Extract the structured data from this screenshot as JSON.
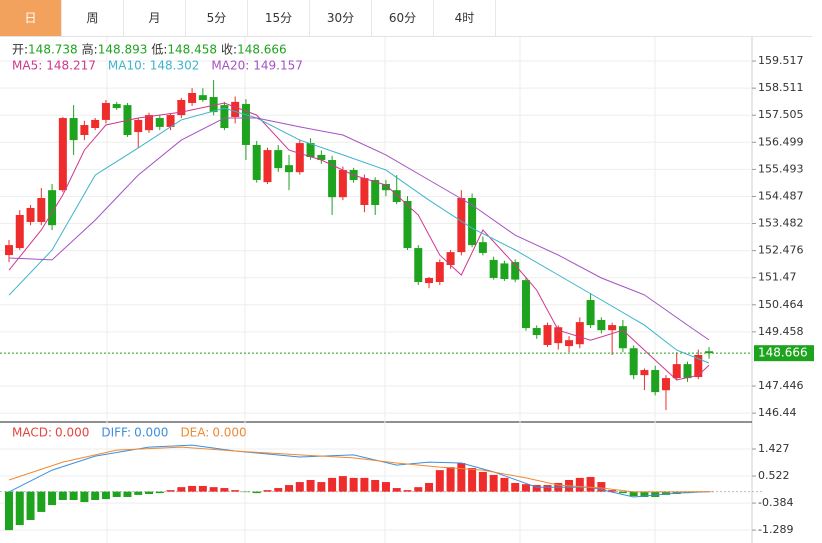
{
  "toolbar": {
    "tabs": [
      "日",
      "周",
      "月",
      "5分",
      "15分",
      "30分",
      "60分",
      "4时"
    ],
    "active_tab": 0
  },
  "chart_data": [
    {
      "type": "candlestick",
      "up_color": "#ee2c2c",
      "down_color": "#1ea31e",
      "ylim": [
        146.11,
        160.41
      ],
      "yticks": [
        159.517,
        158.511,
        157.505,
        156.499,
        155.493,
        154.487,
        153.482,
        152.476,
        151.47,
        150.464,
        149.458,
        147.446,
        146.44
      ],
      "ohlc": [
        {
          "label": "开:",
          "value": 148.738
        },
        {
          "label": "高:",
          "value": 148.893
        },
        {
          "label": "低:",
          "value": 148.458
        },
        {
          "label": "收:",
          "value": 148.666
        }
      ],
      "last_price": 148.666,
      "open": [
        152.31,
        152.57,
        153.54,
        153.54,
        154.72,
        154.72,
        157.4,
        156.77,
        157.03,
        157.33,
        157.92,
        157.88,
        156.88,
        156.95,
        157.4,
        157.07,
        157.51,
        157.96,
        158.25,
        158.18,
        157.88,
        157.44,
        157.92,
        156.4,
        155.02,
        156.21,
        155.65,
        155.39,
        156.47,
        156.03,
        155.84,
        154.46,
        155.47,
        154.17,
        155.1,
        154.95,
        154.72,
        154.32,
        152.57,
        151.27,
        151.31,
        151.94,
        152.42,
        154.43,
        152.79,
        152.13,
        152.0,
        152.05,
        151.38,
        149.6,
        148.97,
        149.04,
        148.93,
        149.0,
        150.64,
        149.9,
        149.52,
        149.67,
        148.85,
        147.85,
        148.04,
        147.29,
        147.74,
        148.26,
        147.78,
        148.738
      ],
      "high": [
        152.87,
        153.98,
        154.17,
        154.8,
        154.95,
        157.44,
        157.88,
        157.3,
        157.4,
        158.07,
        158.0,
        157.96,
        157.4,
        157.6,
        157.51,
        157.55,
        158.15,
        158.51,
        158.51,
        158.81,
        158.0,
        158.2,
        158.1,
        156.55,
        156.3,
        156.4,
        156.03,
        156.6,
        156.65,
        156.2,
        156.0,
        155.6,
        155.55,
        155.3,
        155.2,
        155.1,
        155.28,
        154.5,
        152.68,
        151.5,
        152.15,
        152.5,
        154.72,
        154.6,
        153.0,
        152.25,
        152.1,
        152.15,
        151.5,
        149.7,
        149.8,
        149.7,
        149.3,
        150.0,
        150.9,
        150.0,
        149.8,
        149.9,
        148.95,
        148.1,
        148.2,
        147.85,
        148.7,
        148.35,
        148.8,
        148.893
      ],
      "low": [
        152.05,
        152.5,
        153.42,
        153.42,
        153.24,
        154.65,
        156.03,
        156.58,
        156.95,
        157.2,
        157.7,
        156.7,
        156.29,
        156.85,
        156.95,
        156.95,
        157.4,
        157.85,
        158.0,
        157.5,
        156.95,
        157.2,
        155.84,
        155.0,
        154.95,
        155.4,
        154.72,
        155.3,
        155.85,
        155.7,
        153.8,
        154.35,
        155.0,
        153.9,
        153.8,
        154.5,
        154.2,
        152.5,
        151.2,
        151.08,
        151.2,
        151.8,
        152.3,
        152.6,
        152.3,
        151.4,
        151.35,
        151.3,
        149.5,
        149.2,
        148.9,
        148.8,
        148.7,
        148.85,
        149.6,
        149.4,
        148.6,
        148.7,
        147.7,
        147.3,
        147.1,
        146.55,
        147.65,
        147.6,
        147.7,
        148.458
      ],
      "close": [
        152.68,
        153.8,
        154.06,
        154.43,
        153.42,
        157.4,
        156.58,
        157.14,
        157.33,
        157.96,
        157.77,
        156.77,
        157.33,
        157.51,
        157.07,
        157.51,
        158.07,
        158.33,
        158.07,
        157.62,
        157.03,
        158.0,
        156.4,
        155.1,
        156.21,
        155.54,
        155.39,
        156.47,
        155.95,
        155.84,
        154.46,
        155.47,
        155.1,
        155.17,
        154.17,
        154.72,
        154.28,
        152.57,
        151.31,
        151.46,
        152.05,
        152.42,
        154.43,
        152.68,
        152.39,
        151.46,
        151.42,
        151.4,
        149.6,
        149.34,
        149.71,
        149.63,
        149.15,
        149.82,
        149.71,
        149.52,
        149.71,
        148.85,
        147.85,
        148.04,
        147.22,
        147.74,
        148.26,
        147.74,
        148.6,
        148.666
      ],
      "series": [
        {
          "name": "MA5:",
          "legend_value": 148.217,
          "color": "#d0368e",
          "x": [
            0,
            3,
            5,
            7,
            9,
            12,
            16,
            20,
            23,
            26,
            29,
            32,
            35,
            38,
            40,
            42,
            44,
            47,
            49,
            51,
            54,
            57,
            60,
            62,
            64,
            65
          ],
          "values": [
            151.75,
            153.24,
            154.54,
            156.21,
            157.14,
            157.4,
            157.62,
            157.96,
            157.51,
            156.21,
            155.84,
            155.28,
            154.91,
            153.8,
            152.31,
            151.57,
            153.24,
            151.94,
            151.01,
            149.52,
            149.15,
            149.52,
            148.41,
            147.67,
            147.85,
            148.22
          ]
        },
        {
          "name": "MA10:",
          "legend_value": 148.302,
          "color": "#3bb4cc",
          "x": [
            0,
            4,
            8,
            12,
            16,
            20,
            23,
            27,
            31,
            35,
            39,
            43,
            47,
            51,
            55,
            59,
            62,
            65
          ],
          "values": [
            150.82,
            152.5,
            155.28,
            156.29,
            157.33,
            157.77,
            157.4,
            156.58,
            156.03,
            155.47,
            154.35,
            153.31,
            152.5,
            151.57,
            150.64,
            149.71,
            148.78,
            148.3
          ]
        },
        {
          "name": "MA20:",
          "legend_value": 149.157,
          "color": "#a552c4",
          "x": [
            0,
            4,
            8,
            12,
            16,
            20,
            23,
            27,
            31,
            35,
            39,
            43,
            47,
            51,
            55,
            59,
            63,
            65
          ],
          "values": [
            152.2,
            152.13,
            153.61,
            155.28,
            156.58,
            157.4,
            157.4,
            157.07,
            156.77,
            156.03,
            155.1,
            154.17,
            153.05,
            152.31,
            151.46,
            150.83,
            149.71,
            149.16
          ]
        }
      ]
    },
    {
      "type": "macd",
      "up_color": "#ee2c2c",
      "down_color": "#1ea31e",
      "ylim": [
        -1.62,
        2.332
      ],
      "yticks": [
        1.427,
        0.522,
        -0.384,
        -1.289
      ],
      "series": [
        {
          "name": "MACD:",
          "kind": "bar",
          "color": "#e4463c",
          "legend_value": {
            "value": 0,
            "label": "0.000"
          },
          "values": [
            -1.29,
            -1.12,
            -0.95,
            -0.68,
            -0.45,
            -0.28,
            -0.28,
            -0.35,
            -0.28,
            -0.25,
            -0.18,
            -0.18,
            -0.11,
            -0.08,
            -0.05,
            0.05,
            0.15,
            0.19,
            0.19,
            0.15,
            0.12,
            0.05,
            -0.01,
            -0.05,
            0.05,
            0.12,
            0.22,
            0.32,
            0.39,
            0.32,
            0.46,
            0.52,
            0.46,
            0.46,
            0.39,
            0.32,
            0.12,
            0.05,
            0.15,
            0.29,
            0.72,
            0.82,
            0.96,
            0.79,
            0.66,
            0.56,
            0.46,
            0.29,
            0.25,
            0.22,
            0.22,
            0.29,
            0.39,
            0.46,
            0.49,
            0.32,
            0.05,
            -0.05,
            -0.15,
            -0.18,
            -0.18,
            -0.11,
            -0.08,
            -0.05,
            -0.01,
            0
          ]
        },
        {
          "name": "DIFF:",
          "kind": "line",
          "color": "#3d8fdc",
          "legend_value": {
            "value": 0,
            "label": "0.000"
          },
          "x": [
            0,
            4,
            8,
            13,
            17,
            21,
            27,
            32,
            36,
            39,
            42,
            45,
            49,
            54,
            58,
            62,
            65
          ],
          "values": [
            -0.01,
            0.72,
            1.19,
            1.49,
            1.56,
            1.36,
            1.16,
            1.23,
            0.89,
            0.99,
            0.96,
            0.66,
            0.15,
            0.15,
            -0.18,
            -0.05,
            0
          ]
        },
        {
          "name": "DEA:",
          "kind": "line",
          "color": "#ee8a34",
          "legend_value": {
            "value": 0,
            "label": "0.000"
          },
          "x": [
            0,
            5,
            10,
            16,
            21,
            27,
            32,
            36,
            40,
            44,
            48,
            51,
            55,
            58,
            62,
            65
          ],
          "values": [
            0.39,
            0.99,
            1.39,
            1.49,
            1.36,
            1.23,
            1.13,
            0.96,
            0.82,
            0.72,
            0.46,
            0.22,
            0.12,
            -0.01,
            -0.01,
            0
          ]
        }
      ]
    }
  ]
}
